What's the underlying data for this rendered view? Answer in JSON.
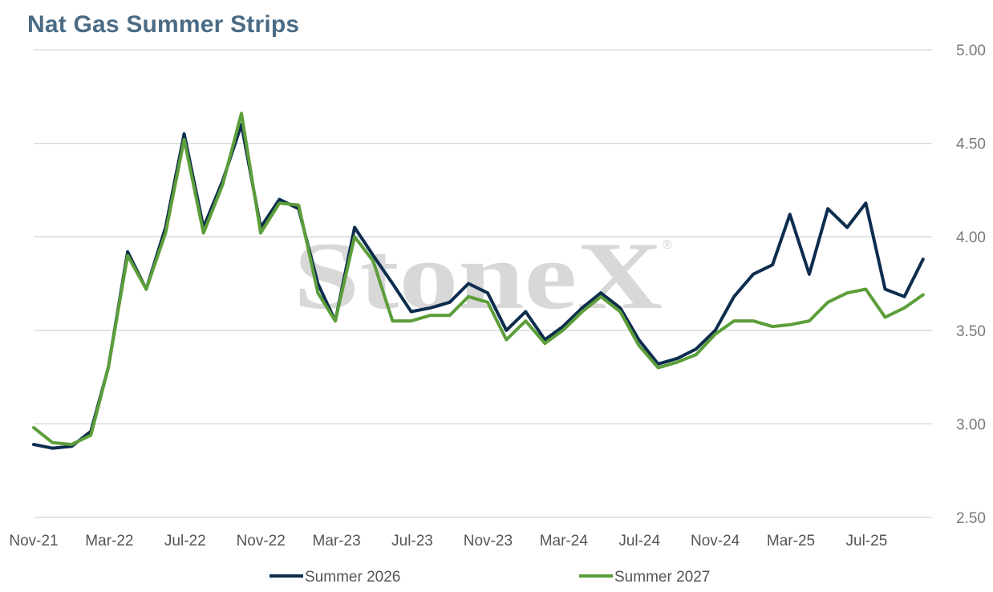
{
  "chart_data": {
    "type": "line",
    "title": "Nat Gas Summer Strips",
    "watermark": "StoneX",
    "watermark_mark": "®",
    "ylim": [
      2.5,
      5.0
    ],
    "yticks": [
      "2.50",
      "3.00",
      "3.50",
      "4.00",
      "4.50",
      "5.00"
    ],
    "xticks": [
      "Nov-21",
      "Mar-22",
      "Jul-22",
      "Nov-22",
      "Mar-23",
      "Jul-23",
      "Nov-23",
      "Mar-24",
      "Jul-24",
      "Nov-24",
      "Mar-25",
      "Jul-25"
    ],
    "grid": true,
    "legend_position": "bottom",
    "x": [
      "2021-11-01",
      "2021-12-01",
      "2022-01-01",
      "2022-02-01",
      "2022-03-01",
      "2022-04-01",
      "2022-05-01",
      "2022-06-01",
      "2022-07-01",
      "2022-08-01",
      "2022-09-01",
      "2022-10-01",
      "2022-11-01",
      "2022-12-01",
      "2023-01-01",
      "2023-02-01",
      "2023-03-01",
      "2023-04-01",
      "2023-05-01",
      "2023-06-01",
      "2023-07-01",
      "2023-08-01",
      "2023-09-01",
      "2023-10-01",
      "2023-11-01",
      "2023-12-01",
      "2024-01-01",
      "2024-02-01",
      "2024-03-01",
      "2024-04-01",
      "2024-05-01",
      "2024-06-01",
      "2024-07-01",
      "2024-08-01",
      "2024-09-01",
      "2024-10-01",
      "2024-11-01",
      "2024-12-01",
      "2025-01-01",
      "2025-02-01",
      "2025-03-01",
      "2025-04-01",
      "2025-05-01",
      "2025-06-01",
      "2025-07-01",
      "2025-08-01",
      "2025-09-01",
      "2025-10-01"
    ],
    "series": [
      {
        "name": "Summer 2026",
        "color": "#0d2d4f",
        "values": [
          2.89,
          2.87,
          2.88,
          2.96,
          3.3,
          3.92,
          3.72,
          4.05,
          4.55,
          4.05,
          4.3,
          4.6,
          4.05,
          4.2,
          4.15,
          3.75,
          3.55,
          4.05,
          3.9,
          3.75,
          3.6,
          3.62,
          3.65,
          3.75,
          3.7,
          3.5,
          3.6,
          3.45,
          3.52,
          3.62,
          3.7,
          3.62,
          3.45,
          3.32,
          3.35,
          3.4,
          3.5,
          3.68,
          3.8,
          3.85,
          4.12,
          3.8,
          4.15,
          4.05,
          4.18,
          3.72,
          3.68,
          3.88
        ]
      },
      {
        "name": "Summer 2027",
        "color": "#5c9e3a",
        "values": [
          2.98,
          2.9,
          2.89,
          2.94,
          3.3,
          3.9,
          3.72,
          4.02,
          4.52,
          4.02,
          4.28,
          4.66,
          4.02,
          4.18,
          4.17,
          3.7,
          3.55,
          4.0,
          3.87,
          3.55,
          3.55,
          3.58,
          3.58,
          3.68,
          3.65,
          3.45,
          3.55,
          3.43,
          3.5,
          3.6,
          3.68,
          3.6,
          3.42,
          3.3,
          3.33,
          3.37,
          3.48,
          3.55,
          3.55,
          3.52,
          3.53,
          3.55,
          3.65,
          3.7,
          3.72,
          3.57,
          3.62,
          3.69
        ]
      }
    ]
  }
}
